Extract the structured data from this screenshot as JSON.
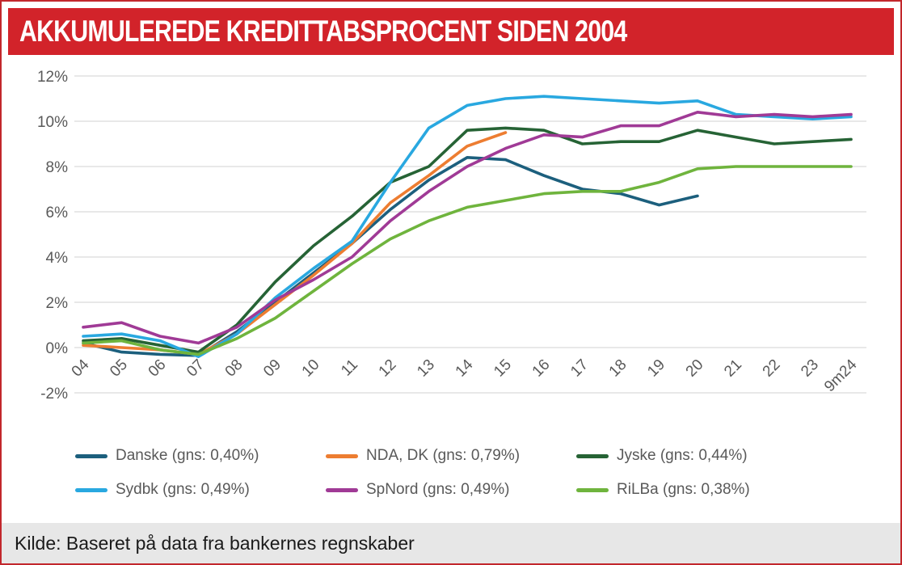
{
  "header": {
    "title": "AKKUMULEREDE KREDITTABSPROCENT SIDEN 2004",
    "background_color": "#d2232a"
  },
  "footer": {
    "source": "Kilde: Baseret på data fra bankernes regnskaber"
  },
  "chart_data": {
    "type": "line",
    "title": "AKKUMULEREDE KREDITTABSPROCENT SIDEN 2004",
    "xlabel": "",
    "ylabel": "",
    "ylim": [
      -2,
      12
    ],
    "grid": "horizontal",
    "legend_position": "bottom",
    "y_tick_values": [
      12,
      10,
      8,
      6,
      4,
      2,
      0,
      -2
    ],
    "y_tick_labels": [
      "12%",
      "10%",
      "8%",
      "6%",
      "4%",
      "2%",
      "0%",
      "-2%"
    ],
    "categories": [
      "04",
      "05",
      "06",
      "07",
      "08",
      "09",
      "10",
      "11",
      "12",
      "13",
      "14",
      "15",
      "16",
      "17",
      "18",
      "19",
      "20",
      "21",
      "22",
      "23",
      "9m24"
    ],
    "series": [
      {
        "id": "danske",
        "name": "Danske (gns: 0,40%)",
        "color": "#1c5f7d",
        "values": [
          0.2,
          -0.2,
          -0.3,
          -0.35,
          0.7,
          2.0,
          3.3,
          4.6,
          6.1,
          7.4,
          8.4,
          8.3,
          7.6,
          7.0,
          6.8,
          6.3,
          6.7,
          null,
          null,
          null,
          null
        ]
      },
      {
        "id": "nda-dk",
        "name": "NDA, DK (gns: 0,79%)",
        "color": "#ed7d31",
        "values": [
          0.1,
          0.0,
          -0.1,
          -0.3,
          0.6,
          1.9,
          3.2,
          4.6,
          6.4,
          7.6,
          8.9,
          9.5,
          null,
          null,
          null,
          null,
          null,
          null,
          null,
          null,
          null
        ]
      },
      {
        "id": "jyske",
        "name": "Jyske (gns: 0,44%)",
        "color": "#266335",
        "values": [
          0.3,
          0.4,
          0.1,
          -0.2,
          1.0,
          2.9,
          4.5,
          5.8,
          7.3,
          8.0,
          9.6,
          9.7,
          9.6,
          9.0,
          9.1,
          9.1,
          9.6,
          9.3,
          9.0,
          9.1,
          9.2
        ]
      },
      {
        "id": "sydbk",
        "name": "Sydbk (gns: 0,49%)",
        "color": "#29a8e0",
        "values": [
          0.5,
          0.6,
          0.3,
          -0.4,
          0.6,
          2.2,
          3.5,
          4.7,
          7.3,
          9.7,
          10.7,
          11.0,
          11.1,
          11.0,
          10.9,
          10.8,
          10.9,
          10.3,
          10.2,
          10.1,
          10.2
        ]
      },
      {
        "id": "spnord",
        "name": "SpNord (gns: 0,49%)",
        "color": "#a03a96",
        "values": [
          0.9,
          1.1,
          0.5,
          0.2,
          0.9,
          2.1,
          3.0,
          4.0,
          5.6,
          6.9,
          8.0,
          8.8,
          9.4,
          9.3,
          9.8,
          9.8,
          10.4,
          10.2,
          10.3,
          10.2,
          10.3
        ]
      },
      {
        "id": "rilba",
        "name": "RiLBa (gns: 0,38%)",
        "color": "#6fb43d",
        "values": [
          0.2,
          0.3,
          -0.1,
          -0.3,
          0.4,
          1.3,
          2.5,
          3.7,
          4.8,
          5.6,
          6.2,
          6.5,
          6.8,
          6.9,
          6.9,
          7.3,
          7.9,
          8.0,
          8.0,
          8.0,
          8.0
        ]
      }
    ]
  }
}
